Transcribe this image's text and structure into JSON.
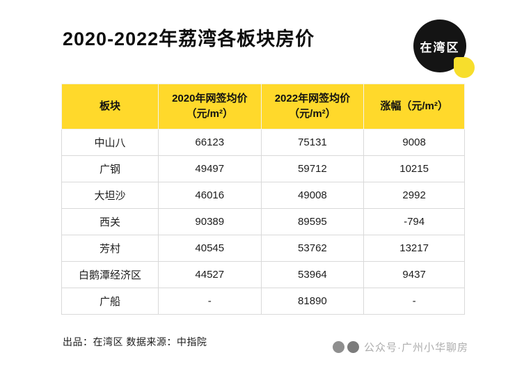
{
  "title": "2020-2022年荔湾各板块房价",
  "logo": {
    "text": "在湾区"
  },
  "table": {
    "headers": [
      {
        "lines": [
          "板块"
        ]
      },
      {
        "lines": [
          "2020年网签均价",
          "（元/m²）"
        ]
      },
      {
        "lines": [
          "2022年网签均价",
          "（元/m²）"
        ]
      },
      {
        "lines": [
          "涨幅（元/m²）"
        ]
      }
    ],
    "rows": [
      [
        "中山八",
        "66123",
        "75131",
        "9008"
      ],
      [
        "广钢",
        "49497",
        "59712",
        "10215"
      ],
      [
        "大坦沙",
        "46016",
        "49008",
        "2992"
      ],
      [
        "西关",
        "90389",
        "89595",
        "-794"
      ],
      [
        "芳村",
        "40545",
        "53762",
        "13217"
      ],
      [
        "白鹅潭经济区",
        "44527",
        "53964",
        "9437"
      ],
      [
        "广船",
        "-",
        "81890",
        "-"
      ]
    ]
  },
  "footer": {
    "source": "出品：在湾区  数据来源：中指院",
    "watermark": "公众号·广州小华聊房"
  },
  "colors": {
    "header_yellow": "#FFD92B",
    "table_border": "#D9D9D9",
    "watermark_gray": "#ADADAD"
  },
  "chart_data": {
    "type": "table",
    "title": "2020-2022年荔湾各板块房价",
    "columns": [
      "板块",
      "2020年网签均价（元/m²）",
      "2022年网签均价（元/m²）",
      "涨幅（元/m²）"
    ],
    "rows": [
      [
        "中山八",
        66123,
        75131,
        9008
      ],
      [
        "广钢",
        49497,
        59712,
        10215
      ],
      [
        "大坦沙",
        46016,
        49008,
        2992
      ],
      [
        "西关",
        90389,
        89595,
        -794
      ],
      [
        "芳村",
        40545,
        53762,
        13217
      ],
      [
        "白鹅潭经济区",
        44527,
        53964,
        9437
      ],
      [
        "广船",
        null,
        81890,
        null
      ]
    ],
    "source": "中指院",
    "producer": "在湾区"
  }
}
